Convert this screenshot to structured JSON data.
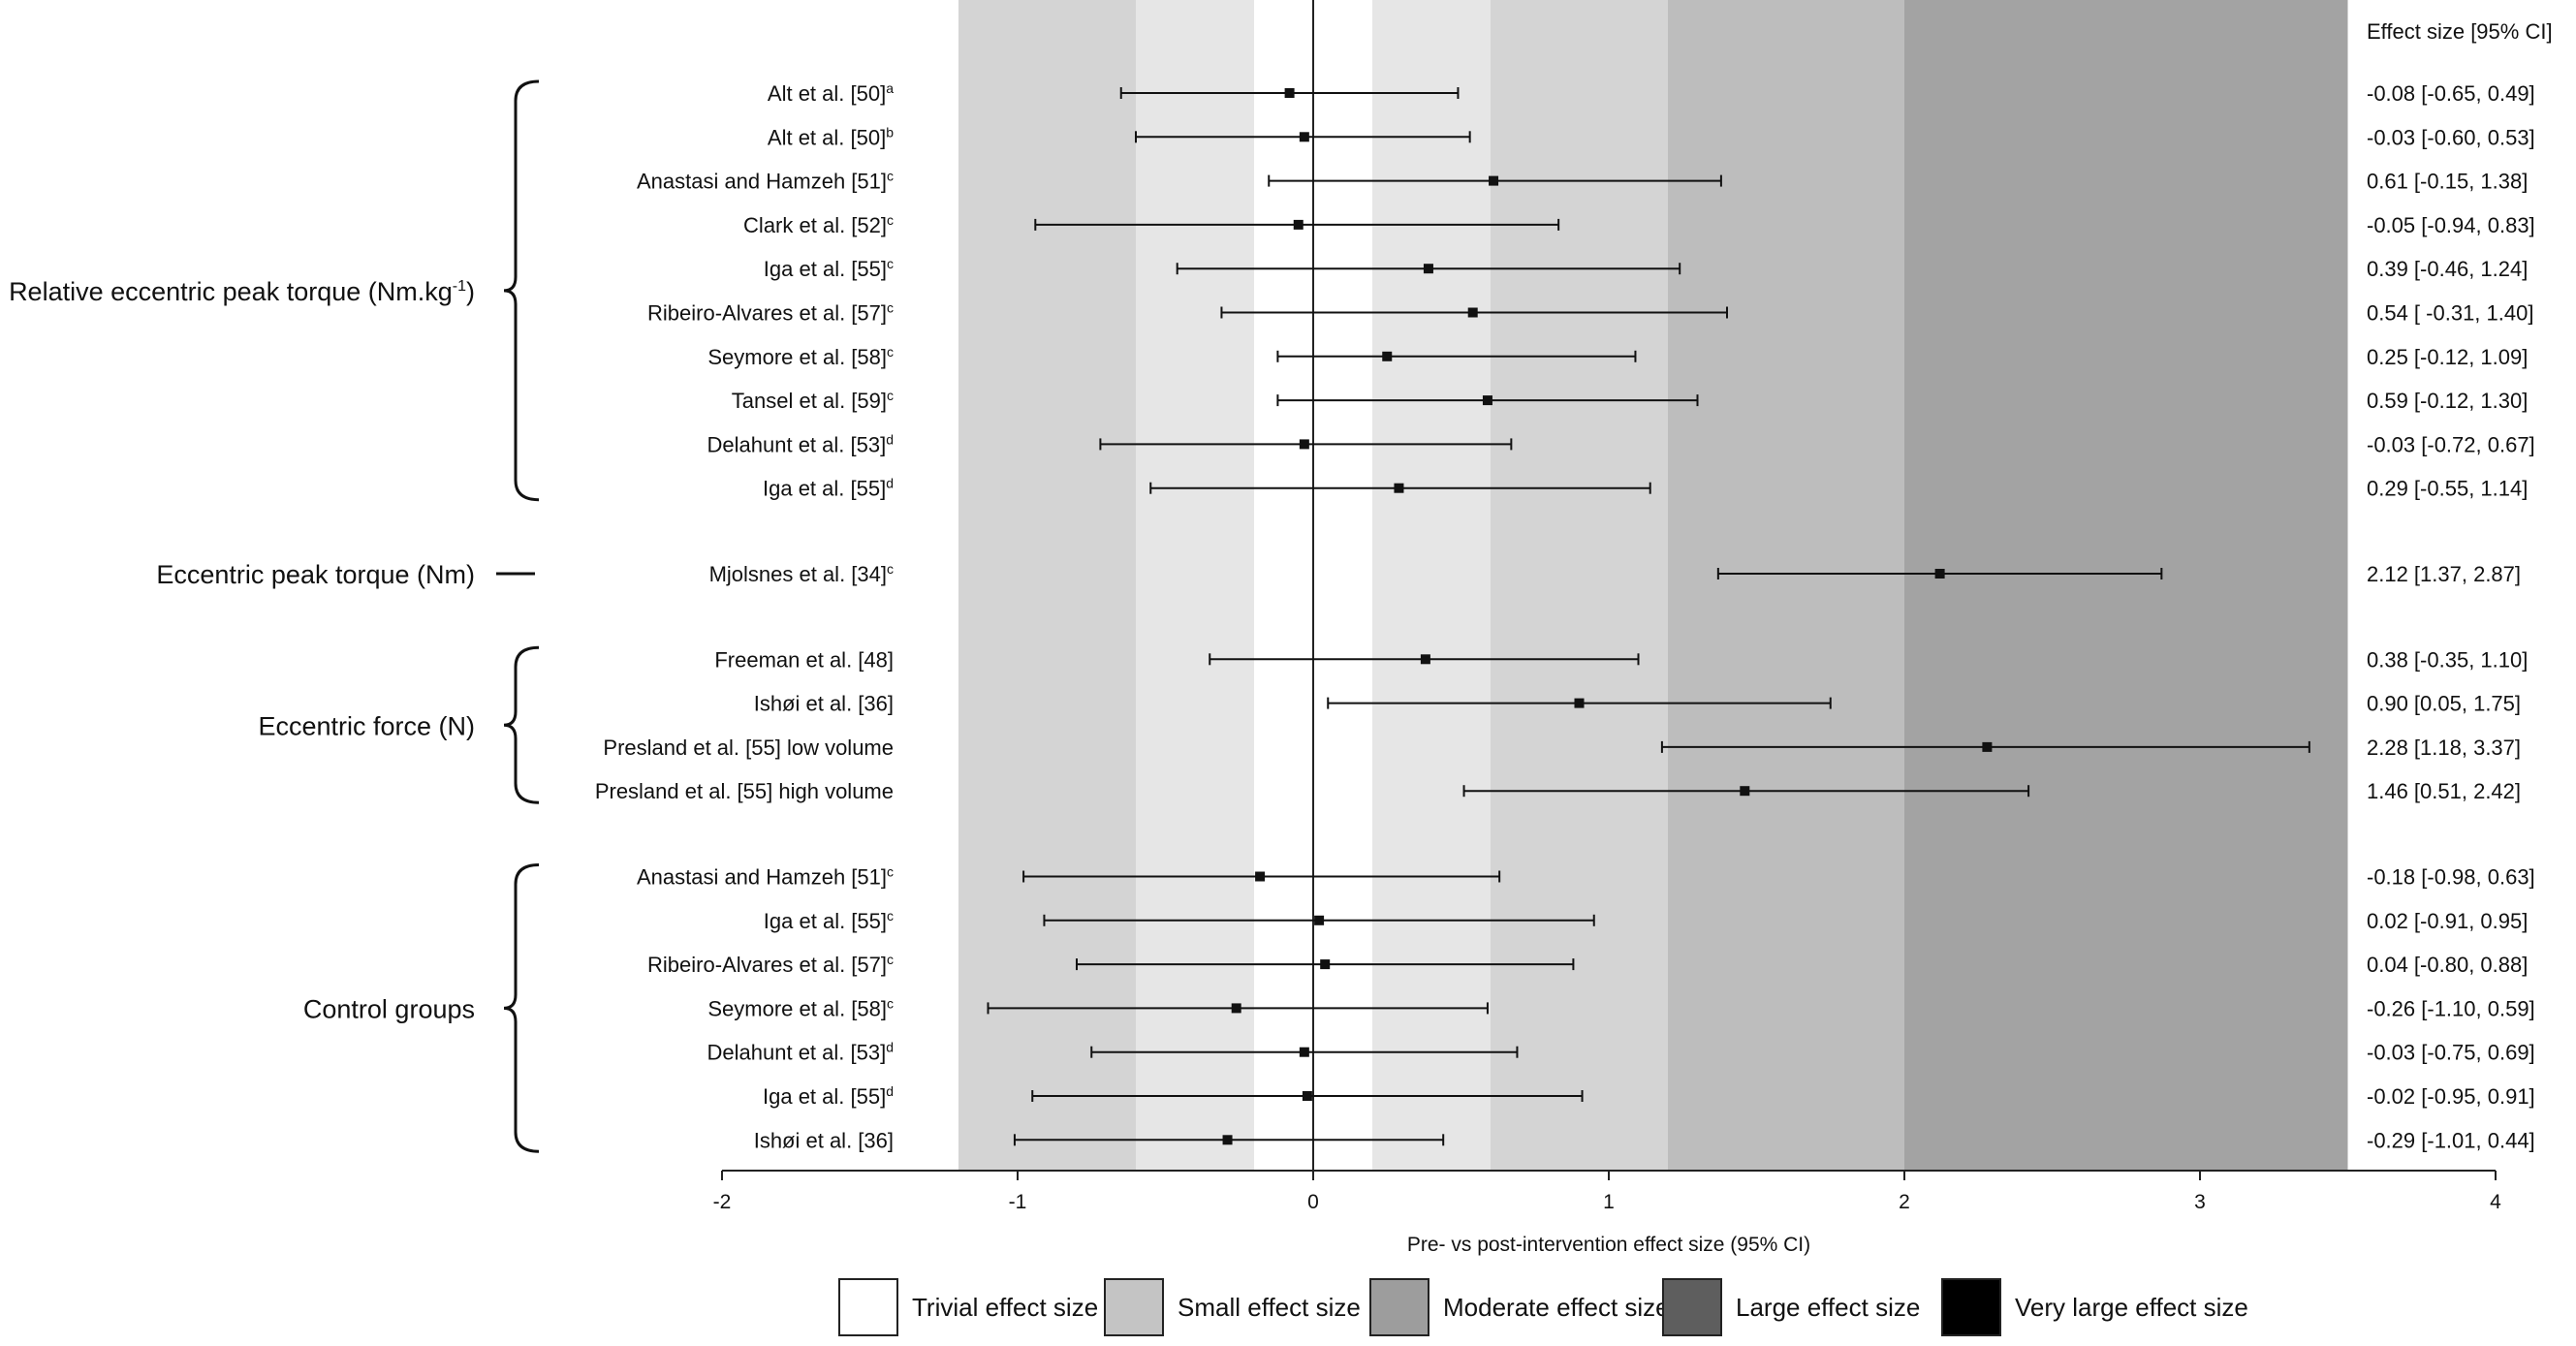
{
  "chart_data": {
    "type": "forest",
    "xlabel": "Pre- vs post-intervention effect size (95% CI)",
    "xlim": [
      -2,
      4
    ],
    "xticks": [
      -2,
      -1,
      0,
      1,
      2,
      3,
      4
    ],
    "ci_header": "Effect size [95% CI]",
    "bands": [
      {
        "from": -1.2,
        "to": -0.6,
        "shade": "#d4d4d4"
      },
      {
        "from": -0.6,
        "to": -0.2,
        "shade": "#e6e6e6"
      },
      {
        "from": -0.2,
        "to": 0.2,
        "shade": "#ffffff"
      },
      {
        "from": 0.2,
        "to": 0.6,
        "shade": "#e6e6e6"
      },
      {
        "from": 0.6,
        "to": 1.2,
        "shade": "#d4d4d4"
      },
      {
        "from": 1.2,
        "to": 2.0,
        "shade": "#bdbdbd"
      },
      {
        "from": 2.0,
        "to": 3.5,
        "shade": "#a3a3a3"
      }
    ],
    "groups": [
      {
        "name": "Relative eccentric peak torque (Nm.kg-1)",
        "label_main": "Relative eccentric peak torque (Nm.kg",
        "label_sup": "-1",
        "label_end": ")",
        "rows": [
          {
            "study": "Alt et al. [50]",
            "sup": "a",
            "es": -0.08,
            "lo": -0.65,
            "hi": 0.49,
            "ci_text": "-0.08 [-0.65, 0.49]"
          },
          {
            "study": "Alt et al. [50]",
            "sup": "b",
            "es": -0.03,
            "lo": -0.6,
            "hi": 0.53,
            "ci_text": "-0.03 [-0.60, 0.53]"
          },
          {
            "study": "Anastasi and Hamzeh [51]",
            "sup": "c",
            "es": 0.61,
            "lo": -0.15,
            "hi": 1.38,
            "ci_text": "0.61 [-0.15, 1.38]"
          },
          {
            "study": "Clark et al. [52]",
            "sup": "c",
            "es": -0.05,
            "lo": -0.94,
            "hi": 0.83,
            "ci_text": "-0.05 [-0.94, 0.83]"
          },
          {
            "study": "Iga et al. [55]",
            "sup": "c",
            "es": 0.39,
            "lo": -0.46,
            "hi": 1.24,
            "ci_text": "0.39 [-0.46, 1.24]"
          },
          {
            "study": "Ribeiro-Alvares et al. [57]",
            "sup": "c",
            "es": 0.54,
            "lo": -0.31,
            "hi": 1.4,
            "ci_text": "0.54 [ -0.31, 1.40]"
          },
          {
            "study": "Seymore et al. [58]",
            "sup": "c",
            "es": 0.25,
            "lo": -0.12,
            "hi": 1.09,
            "ci_text": "0.25 [-0.12, 1.09]"
          },
          {
            "study": "Tansel et al. [59]",
            "sup": "c",
            "es": 0.59,
            "lo": -0.12,
            "hi": 1.3,
            "ci_text": "0.59 [-0.12, 1.30]"
          },
          {
            "study": "Delahunt et al. [53]",
            "sup": "d",
            "es": -0.03,
            "lo": -0.72,
            "hi": 0.67,
            "ci_text": "-0.03 [-0.72, 0.67]"
          },
          {
            "study": "Iga et al. [55]",
            "sup": "d",
            "es": 0.29,
            "lo": -0.55,
            "hi": 1.14,
            "ci_text": "0.29 [-0.55, 1.14]"
          }
        ]
      },
      {
        "name": "Eccentric peak torque (Nm)",
        "label_main": "Eccentric peak torque (Nm)",
        "label_sup": "",
        "label_end": "",
        "rows": [
          {
            "study": "Mjolsnes et al. [34]",
            "sup": "c",
            "es": 2.12,
            "lo": 1.37,
            "hi": 2.87,
            "ci_text": "2.12 [1.37, 2.87]"
          }
        ]
      },
      {
        "name": "Eccentric force (N)",
        "label_main": "Eccentric force (N)",
        "label_sup": "",
        "label_end": "",
        "rows": [
          {
            "study": "Freeman et al. [48]",
            "sup": "",
            "es": 0.38,
            "lo": -0.35,
            "hi": 1.1,
            "ci_text": "0.38 [-0.35, 1.10]"
          },
          {
            "study": "Ishøi et al. [36]",
            "sup": "",
            "es": 0.9,
            "lo": 0.05,
            "hi": 1.75,
            "ci_text": "0.90 [0.05, 1.75]"
          },
          {
            "study": "Presland et al. [55] low volume",
            "sup": "",
            "es": 2.28,
            "lo": 1.18,
            "hi": 3.37,
            "ci_text": "2.28 [1.18, 3.37]"
          },
          {
            "study": "Presland et al. [55] high volume",
            "sup": "",
            "es": 1.46,
            "lo": 0.51,
            "hi": 2.42,
            "ci_text": "1.46 [0.51, 2.42]"
          }
        ]
      },
      {
        "name": "Control groups",
        "label_main": "Control groups",
        "label_sup": "",
        "label_end": "",
        "rows": [
          {
            "study": "Anastasi and Hamzeh [51]",
            "sup": "c",
            "es": -0.18,
            "lo": -0.98,
            "hi": 0.63,
            "ci_text": "-0.18 [-0.98, 0.63]"
          },
          {
            "study": "Iga et al. [55]",
            "sup": "c",
            "es": 0.02,
            "lo": -0.91,
            "hi": 0.95,
            "ci_text": "0.02 [-0.91, 0.95]"
          },
          {
            "study": "Ribeiro-Alvares et al. [57]",
            "sup": "c",
            "es": 0.04,
            "lo": -0.8,
            "hi": 0.88,
            "ci_text": "0.04 [-0.80, 0.88]"
          },
          {
            "study": "Seymore et al. [58]",
            "sup": "c",
            "es": -0.26,
            "lo": -1.1,
            "hi": 0.59,
            "ci_text": "-0.26 [-1.10, 0.59]"
          },
          {
            "study": "Delahunt et al. [53]",
            "sup": "d",
            "es": -0.03,
            "lo": -0.75,
            "hi": 0.69,
            "ci_text": "-0.03 [-0.75, 0.69]"
          },
          {
            "study": "Iga et al. [55]",
            "sup": "d",
            "es": -0.02,
            "lo": -0.95,
            "hi": 0.91,
            "ci_text": "-0.02 [-0.95, 0.91]"
          },
          {
            "study": "Ishøi et al. [36]",
            "sup": "",
            "es": -0.29,
            "lo": -1.01,
            "hi": 0.44,
            "ci_text": "-0.29 [-1.01, 0.44]"
          }
        ]
      }
    ],
    "legend": [
      {
        "label": "Trivial effect size",
        "color": "#ffffff"
      },
      {
        "label": "Small effect size",
        "color": "#c4c4c4"
      },
      {
        "label": "Moderate effect size",
        "color": "#9d9d9d"
      },
      {
        "label": "Large effect size",
        "color": "#5e5e5e"
      },
      {
        "label": "Very large effect size",
        "color": "#000000"
      }
    ]
  }
}
